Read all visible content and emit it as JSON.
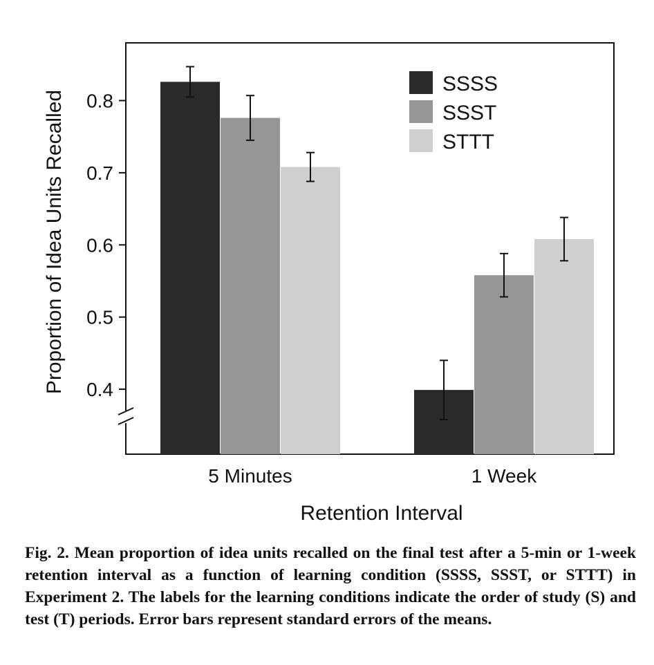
{
  "chart_data": {
    "type": "bar",
    "categories": [
      "5 Minutes",
      "1 Week"
    ],
    "series": [
      {
        "name": "SSSS",
        "color": "#2a2a2a",
        "values": [
          0.826,
          0.399
        ],
        "errors": [
          0.021,
          0.041
        ]
      },
      {
        "name": "SSST",
        "color": "#969696",
        "values": [
          0.776,
          0.558
        ],
        "errors": [
          0.031,
          0.03
        ]
      },
      {
        "name": "STTT",
        "color": "#cfcfcf",
        "values": [
          0.708,
          0.608
        ],
        "errors": [
          0.02,
          0.03
        ]
      }
    ],
    "xlabel": "Retention Interval",
    "ylabel": "Proportion of Idea Units Recalled",
    "yticks": [
      0.4,
      0.5,
      0.6,
      0.7,
      0.8
    ],
    "ytick_labels": [
      "0.4",
      "0.5",
      "0.6",
      "0.7",
      "0.8"
    ],
    "ylim": [
      0.31,
      0.88
    ],
    "axis_break": true,
    "grid": false,
    "legend_position": "top-right"
  },
  "caption": {
    "label": "Fig. 2.",
    "text": "Mean proportion of idea units recalled on the final test after a 5-min or 1-week retention interval as a function of learning condition (SSSS, SSST, or STTT) in Experiment 2. The labels for the learning conditions indicate the order of study (S) and test (T) periods. Error bars represent standard errors of the means."
  }
}
